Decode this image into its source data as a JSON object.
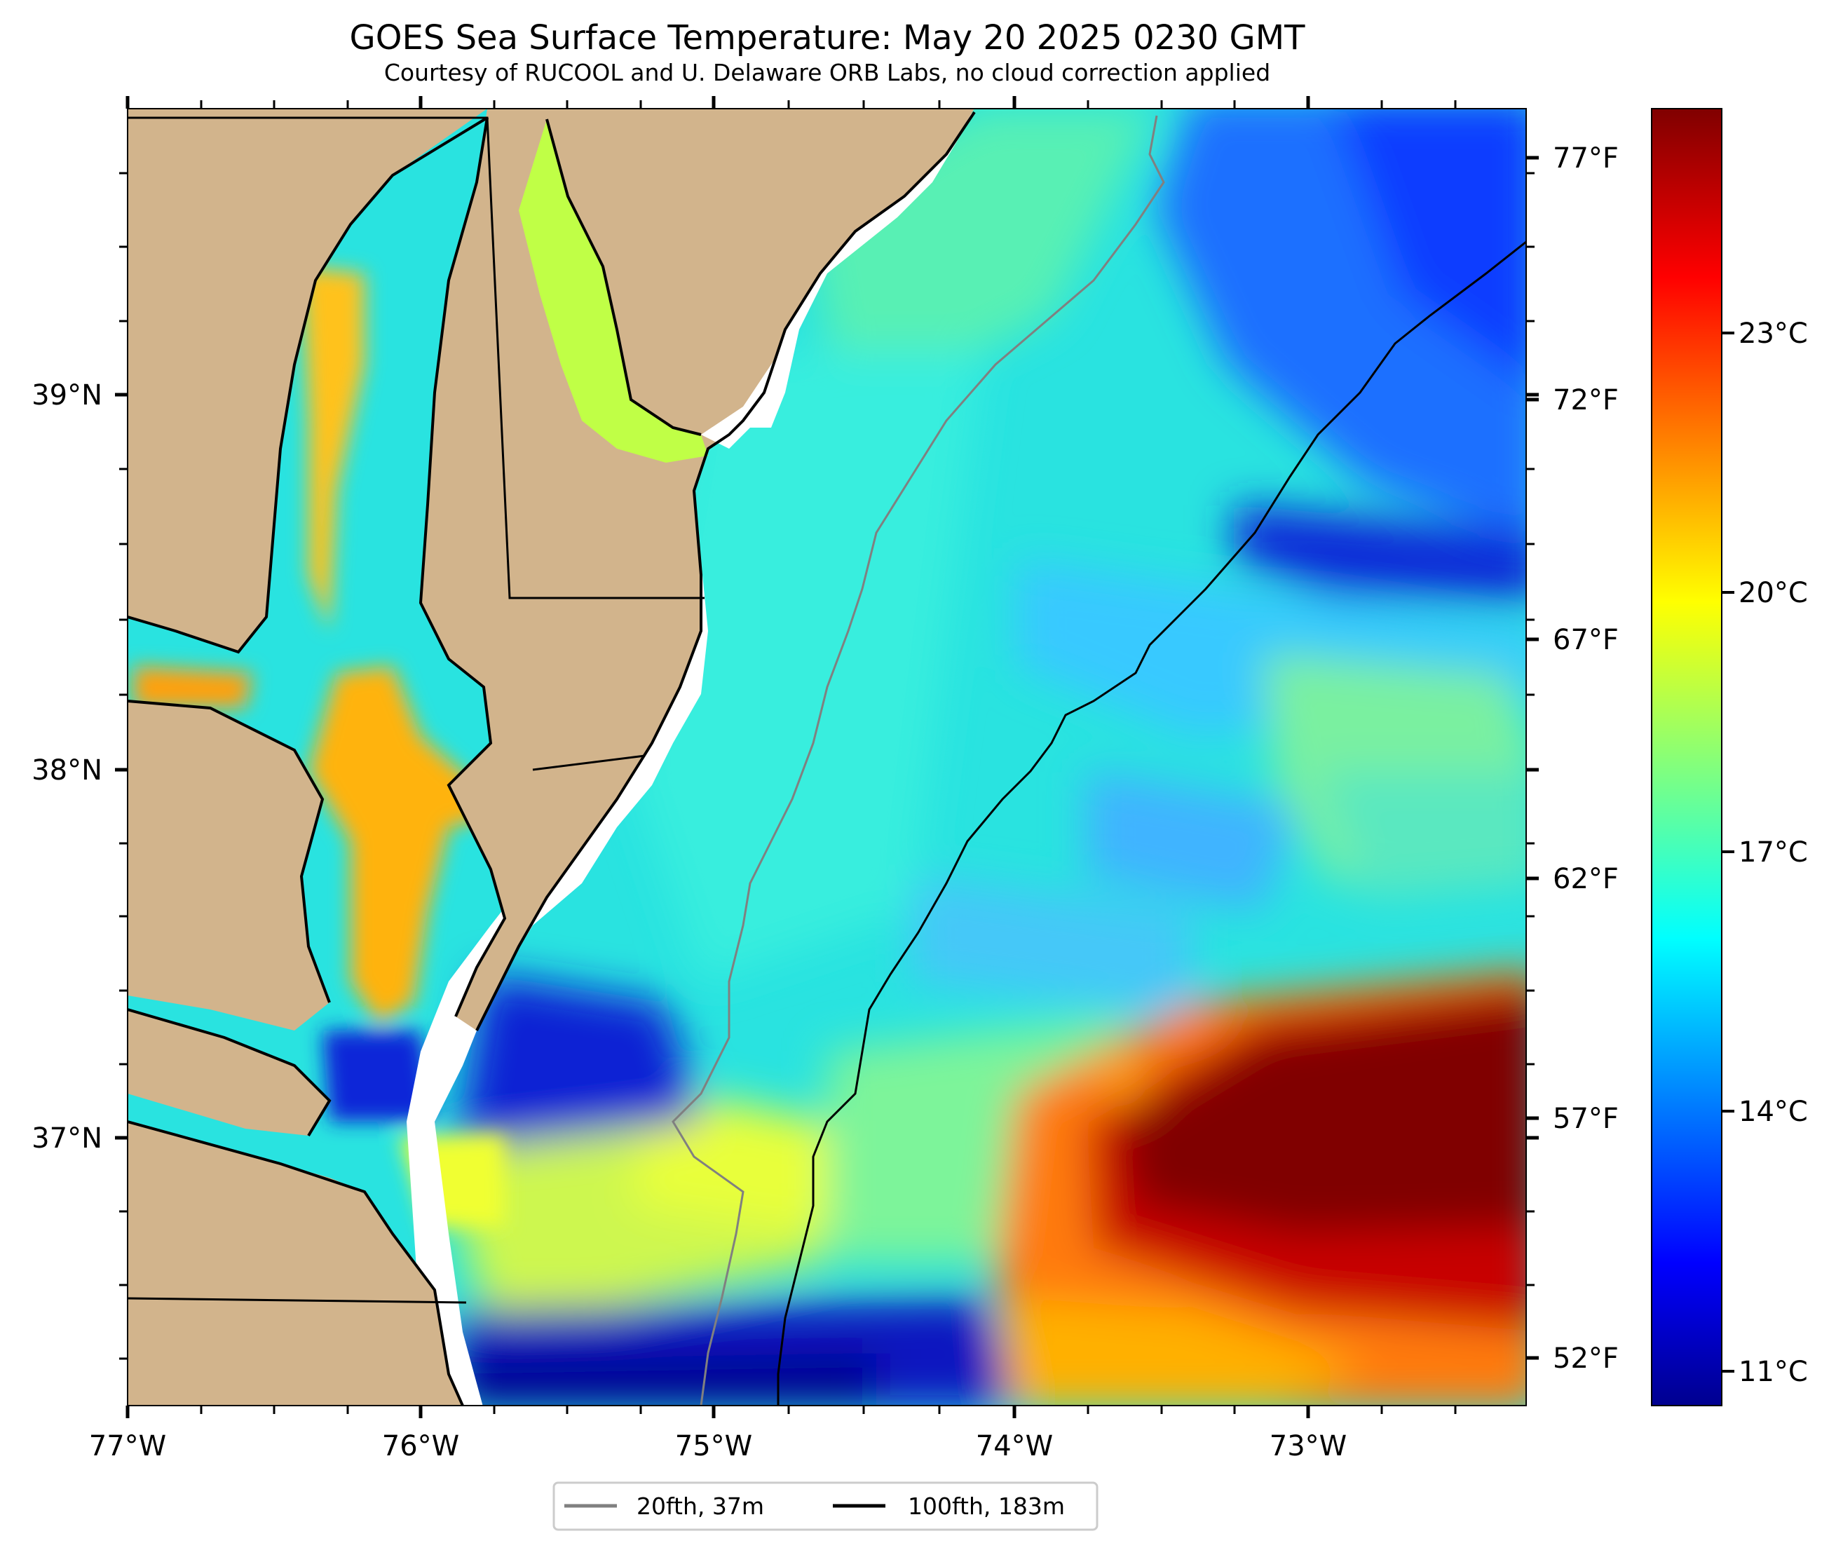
{
  "title": "GOES Sea Surface Temperature: May 20 2025 0230 GMT",
  "subtitle": "Courtesy of RUCOOL and U. Delaware ORB Labs, no cloud correction applied",
  "map": {
    "lon_labels": [
      "77°W",
      "76°W",
      "75°W",
      "74°W",
      "73°W"
    ],
    "lat_labels": [
      "39°N",
      "38°N",
      "37°N"
    ],
    "fahrenheit_labels": [
      "77°F",
      "72°F",
      "67°F",
      "62°F",
      "57°F",
      "52°F"
    ],
    "land_color": "#d2b48c",
    "water_no_data_color": "#ffffff"
  },
  "colorbar": {
    "colormap": "jet",
    "celsius_labels": [
      "23°C",
      "20°C",
      "17°C",
      "14°C",
      "11°C"
    ],
    "range_c": [
      10.7,
      25.4
    ]
  },
  "legend": {
    "items": [
      {
        "label": "20fth, 37m",
        "color": "#808080"
      },
      {
        "label": "100fth, 183m",
        "color": "#000000"
      }
    ]
  }
}
